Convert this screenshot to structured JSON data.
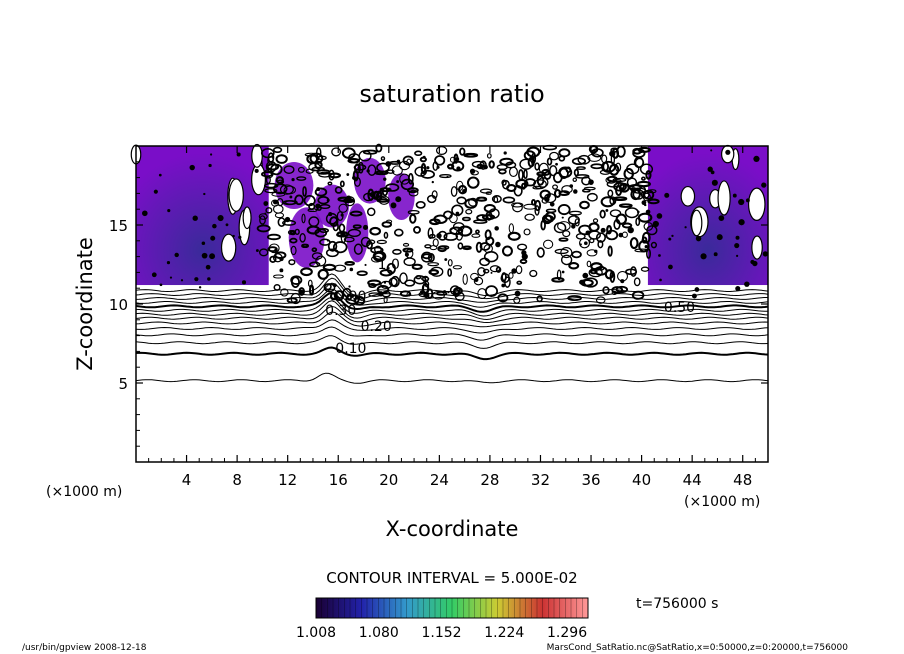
{
  "chart_data": {
    "type": "contour",
    "title": "saturation ratio",
    "xlabel": "X-coordinate",
    "ylabel": "Z-coordinate",
    "x_unit_left": "(×1000 m)",
    "x_unit_right": "(×1000 m)",
    "xlim": [
      0,
      50
    ],
    "ylim": [
      0,
      20
    ],
    "x_ticks": [
      "4",
      "8",
      "12",
      "16",
      "20",
      "24",
      "28",
      "32",
      "36",
      "40",
      "44",
      "48"
    ],
    "x_tick_values": [
      4,
      8,
      12,
      16,
      20,
      24,
      28,
      32,
      36,
      40,
      44,
      48
    ],
    "y_ticks": [
      "5",
      "10",
      "15"
    ],
    "y_tick_values": [
      5,
      10,
      15
    ],
    "contour_labels": [
      {
        "text": "0.10",
        "x": 17.0,
        "y": 6.9
      },
      {
        "text": "0.20",
        "x": 19.0,
        "y": 8.3
      },
      {
        "text": "0.30",
        "x": 16.2,
        "y": 9.3
      },
      {
        "text": "0.50",
        "x": 43.0,
        "y": 9.5
      },
      {
        "text": "0.90",
        "x": 17.0,
        "y": 10.2
      },
      {
        "text": "1.0",
        "x": 20.0,
        "y": 12.2
      }
    ],
    "contour_levels_smooth": [
      {
        "level": 0.05,
        "z": 5.15,
        "bump_x": 15.0,
        "bump_h": 0.45
      },
      {
        "level": 0.1,
        "z": 6.85,
        "bump_x": 15.5,
        "bump_h": 0.35
      },
      {
        "level": 0.15,
        "z": 7.55,
        "bump_x": 15.5,
        "bump_h": 0.45
      },
      {
        "level": 0.2,
        "z": 8.05,
        "bump_x": 15.5,
        "bump_h": 0.55
      },
      {
        "level": 0.25,
        "z": 8.45,
        "bump_x": 15.5,
        "bump_h": 0.6
      },
      {
        "level": 0.3,
        "z": 8.8,
        "bump_x": 15.5,
        "bump_h": 0.7
      },
      {
        "level": 0.35,
        "z": 9.1,
        "bump_x": 15.5,
        "bump_h": 0.7
      },
      {
        "level": 0.4,
        "z": 9.35,
        "bump_x": 15.5,
        "bump_h": 0.8
      },
      {
        "level": 0.45,
        "z": 9.6,
        "bump_x": 15.5,
        "bump_h": 0.8
      },
      {
        "level": 0.5,
        "z": 9.85,
        "bump_x": 15.5,
        "bump_h": 0.9
      },
      {
        "level": 0.6,
        "z": 10.1,
        "bump_x": 15.5,
        "bump_h": 0.9
      },
      {
        "level": 0.7,
        "z": 10.35,
        "bump_x": 15.5,
        "bump_h": 1.0
      },
      {
        "level": 0.8,
        "z": 10.6,
        "bump_x": 15.5,
        "bump_h": 1.0
      },
      {
        "level": 0.9,
        "z": 10.85,
        "bump_x": 15.5,
        "bump_h": 1.0
      }
    ],
    "shaded_regions": [
      {
        "x0": 0,
        "x1": 10.5,
        "z0": 11.2,
        "z1": 20,
        "min": 1.008,
        "max": 1.12
      },
      {
        "x0": 40.5,
        "x1": 50,
        "z0": 11.2,
        "z1": 20,
        "min": 1.008,
        "max": 1.12
      }
    ],
    "contour_interval_label": "CONTOUR INTERVAL = 5.000E-02",
    "colorbar_ticks": [
      "1.008",
      "1.080",
      "1.152",
      "1.224",
      "1.296"
    ],
    "colorbar_range": [
      1.008,
      1.32
    ],
    "colorbar_colors": [
      "#1a0033",
      "#2222aa",
      "#3399cc",
      "#33cc66",
      "#cccc33",
      "#cc3333",
      "#ff9999"
    ],
    "shade_color_low": "#7a0ec8",
    "shade_color_high": "#3a2a9a",
    "time_label": "t=756000 s",
    "footer_left": "/usr/bin/gpview   2008-12-18",
    "footer_right": "MarsCond_SatRatio.nc@SatRatio,x=0:50000,z=0:20000,t=756000"
  }
}
